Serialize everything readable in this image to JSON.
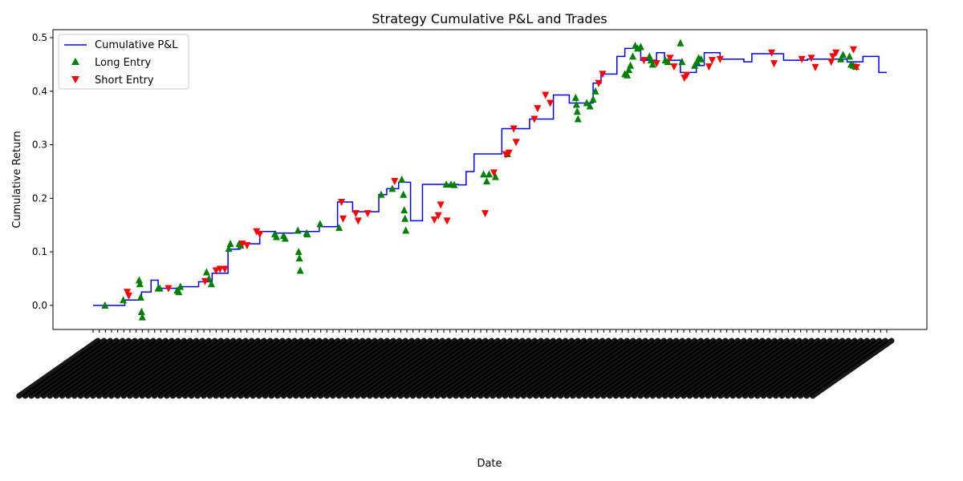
{
  "chart_data": {
    "type": "line",
    "title": "Strategy Cumulative P&L and Trades",
    "xlabel": "Date",
    "ylabel": "Cumulative Return",
    "ylim": [
      -0.045,
      0.515
    ],
    "yticks": [
      "0.0",
      "0.1",
      "0.2",
      "0.3",
      "0.4",
      "0.5"
    ],
    "ytick_values": [
      0.0,
      0.1,
      0.2,
      0.3,
      0.4,
      0.5
    ],
    "xlim": [
      0,
      100
    ],
    "grid": false,
    "legend_position": "upper-left",
    "series": [
      {
        "name": "Cumulative P&L",
        "color": "#0000ff",
        "x": [
          0,
          1.5,
          4,
          6,
          6.1,
          7.3,
          8,
          8.2,
          10,
          11,
          13,
          13.3,
          14,
          15,
          16,
          17,
          18.5,
          19,
          21,
          21.3,
          23,
          23.4,
          25.5,
          25.8,
          27,
          27.2,
          28,
          28.5,
          30,
          30.8,
          32,
          32.7,
          35,
          36,
          37,
          38.5,
          39,
          40,
          41,
          41.5,
          42.5,
          44,
          45,
          46,
          47,
          48,
          50,
          51.5,
          55,
          56,
          58,
          60,
          62,
          63,
          64,
          66,
          67,
          67.5,
          68,
          69,
          70,
          71,
          72,
          73,
          74,
          75,
          76,
          77,
          78,
          79,
          80,
          81,
          82,
          82.5,
          83,
          85,
          87,
          90,
          93,
          95,
          97,
          99,
          100
        ],
        "y": [
          0.0,
          0.0,
          0.01,
          0.012,
          0.025,
          0.047,
          0.047,
          0.032,
          0.032,
          0.035,
          0.035,
          0.044,
          0.044,
          0.06,
          0.06,
          0.105,
          0.115,
          0.115,
          0.138,
          0.138,
          0.135,
          0.135,
          0.135,
          0.138,
          0.138,
          0.138,
          0.138,
          0.147,
          0.147,
          0.193,
          0.193,
          0.175,
          0.175,
          0.207,
          0.218,
          0.23,
          0.23,
          0.158,
          0.158,
          0.226,
          0.226,
          0.226,
          0.226,
          0.225,
          0.25,
          0.283,
          0.283,
          0.33,
          0.348,
          0.348,
          0.393,
          0.378,
          0.378,
          0.415,
          0.432,
          0.465,
          0.48,
          0.48,
          0.48,
          0.458,
          0.458,
          0.472,
          0.458,
          0.458,
          0.435,
          0.435,
          0.448,
          0.472,
          0.472,
          0.46,
          0.46,
          0.46,
          0.455,
          0.455,
          0.47,
          0.47,
          0.458,
          0.46,
          0.46,
          0.455,
          0.465,
          0.435,
          0.435
        ]
      },
      {
        "name": "Long Entry",
        "color": "#008000",
        "marker": "triangle-up",
        "x": [
          1.5,
          3.8,
          5.8,
          5.9,
          6.0,
          6.1,
          6.2,
          8.2,
          8.4,
          10.6,
          10.8,
          11.0,
          14.3,
          14.6,
          14.9,
          17.1,
          17.3,
          18.4,
          18.6,
          22.9,
          23.1,
          24.0,
          24.2,
          25.8,
          25.9,
          26.0,
          26.1,
          26.9,
          27.0,
          28.6,
          31.0,
          36.3,
          37.7,
          38.9,
          39.1,
          39.2,
          39.3,
          39.4,
          44.5,
          45.1,
          45.5,
          49.2,
          49.6,
          49.9,
          50.7,
          52.2,
          60.8,
          60.9,
          61.0,
          61.1,
          62.2,
          62.6,
          63.0,
          63.3,
          67.0,
          67.3,
          67.5,
          67.7,
          68.0,
          68.3,
          68.6,
          69.0,
          70.1,
          70.3,
          70.5,
          72.1,
          72.4,
          74.0,
          74.2,
          75.8,
          76.1,
          76.3,
          76.6,
          94.2,
          94.5,
          95.3,
          95.5,
          95.8,
          96.1
        ],
        "y": [
          0.0,
          0.01,
          0.047,
          0.04,
          0.015,
          -0.012,
          -0.022,
          0.032,
          0.032,
          0.028,
          0.025,
          0.035,
          0.062,
          0.05,
          0.04,
          0.106,
          0.115,
          0.115,
          0.112,
          0.133,
          0.128,
          0.13,
          0.125,
          0.14,
          0.1,
          0.088,
          0.065,
          0.135,
          0.133,
          0.152,
          0.145,
          0.207,
          0.218,
          0.235,
          0.207,
          0.178,
          0.162,
          0.14,
          0.226,
          0.226,
          0.225,
          0.245,
          0.232,
          0.245,
          0.24,
          0.283,
          0.388,
          0.375,
          0.362,
          0.348,
          0.378,
          0.372,
          0.385,
          0.4,
          0.432,
          0.43,
          0.44,
          0.448,
          0.465,
          0.485,
          0.48,
          0.483,
          0.465,
          0.458,
          0.45,
          0.458,
          0.455,
          0.49,
          0.455,
          0.448,
          0.455,
          0.462,
          0.46,
          0.46,
          0.468,
          0.465,
          0.45,
          0.448,
          0.446
        ],
        "note_count_visible": "many"
      },
      {
        "name": "Short Entry",
        "color": "#ff0000",
        "marker": "triangle-down",
        "x": [
          4.3,
          4.5,
          9.5,
          14.1,
          15.5,
          16.0,
          16.6,
          18.8,
          19.4,
          20.6,
          21.0,
          31.3,
          31.5,
          33.1,
          33.4,
          34.6,
          38.0,
          43.0,
          43.5,
          43.8,
          44.6,
          49.4,
          50.5,
          52.0,
          52.4,
          53.0,
          53.3,
          55.6,
          56.0,
          57.0,
          57.6,
          63.7,
          64.2,
          69.4,
          71.0,
          72.7,
          73.2,
          74.5,
          74.8,
          77.6,
          78.0,
          79.0,
          85.5,
          85.8,
          89.3,
          90.5,
          91.0,
          93.0,
          93.2,
          93.6,
          95.8,
          96.2
        ],
        "y": [
          0.025,
          0.018,
          0.032,
          0.045,
          0.065,
          0.068,
          0.068,
          0.115,
          0.112,
          0.138,
          0.133,
          0.193,
          0.162,
          0.172,
          0.158,
          0.172,
          0.232,
          0.16,
          0.168,
          0.188,
          0.158,
          0.172,
          0.248,
          0.282,
          0.285,
          0.33,
          0.305,
          0.348,
          0.368,
          0.393,
          0.378,
          0.415,
          0.432,
          0.458,
          0.452,
          0.462,
          0.446,
          0.425,
          0.43,
          0.446,
          0.458,
          0.46,
          0.472,
          0.452,
          0.46,
          0.462,
          0.445,
          0.455,
          0.465,
          0.472,
          0.478,
          0.445
        ]
      }
    ],
    "xtick_count": 130
  }
}
